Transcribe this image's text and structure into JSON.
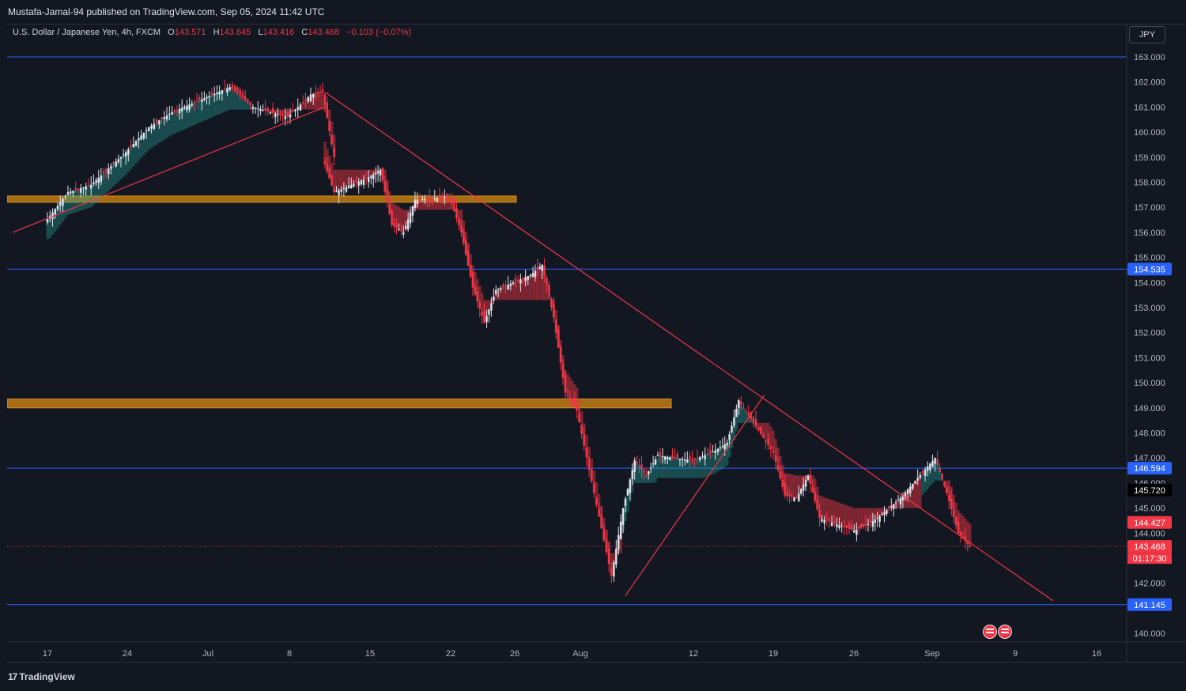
{
  "header": {
    "published": "Mustafa-Jamal-94 published on TradingView.com, Sep 05, 2024 11:42 UTC"
  },
  "legend": {
    "symbol": "U.S. Dollar / Japanese Yen, 4h, FXCM",
    "open_label": "O",
    "open": "143.571",
    "high_label": "H",
    "high": "143.645",
    "low_label": "L",
    "low": "143.416",
    "close_label": "C",
    "close": "143.468",
    "change": "−0.103 (−0.07%)"
  },
  "currency_button": "JPY",
  "footer": {
    "brand": "TradingView"
  },
  "colors": {
    "background": "#131722",
    "up": "#26a69a",
    "down": "#f23645",
    "hline": "#2962ff",
    "zone": "#f5a623",
    "trend": "#f23645"
  },
  "chart_data": {
    "type": "candlestick",
    "ylim": [
      139.6,
      164.0
    ],
    "y_ticks": [
      "163.000",
      "162.000",
      "161.000",
      "160.000",
      "159.000",
      "158.000",
      "157.000",
      "156.000",
      "155.000",
      "154.000",
      "153.000",
      "152.000",
      "151.000",
      "150.000",
      "149.000",
      "148.000",
      "147.000",
      "146.000",
      "145.000",
      "144.000",
      "142.000",
      "140.000"
    ],
    "x_ticks": [
      "17",
      "24",
      "Jul",
      "8",
      "15",
      "22",
      "26",
      "Aug",
      "12",
      "19",
      "26",
      "Sep",
      "9",
      "16"
    ],
    "price_path": [
      [
        "Jun 17",
        156.4
      ],
      [
        "Jun 19",
        157.6
      ],
      [
        "Jun 21",
        157.9
      ],
      [
        "Jun 24",
        159.2
      ],
      [
        "Jun 26",
        160.2
      ],
      [
        "Jun 28",
        160.8
      ],
      [
        "Jul 1",
        161.4
      ],
      [
        "Jul 3",
        161.8
      ],
      [
        "Jul 5",
        161.0
      ],
      [
        "Jul 8",
        160.6
      ],
      [
        "Jul 10",
        161.5
      ],
      [
        "Jul 11",
        161.6
      ],
      [
        "Jul 11",
        159.0
      ],
      [
        "Jul 12",
        157.6
      ],
      [
        "Jul 15",
        158.2
      ],
      [
        "Jul 16",
        158.5
      ],
      [
        "Jul 17",
        156.3
      ],
      [
        "Jul 18",
        156.0
      ],
      [
        "Jul 19",
        157.3
      ],
      [
        "Jul 22",
        157.4
      ],
      [
        "Jul 23",
        156.0
      ],
      [
        "Jul 24",
        153.8
      ],
      [
        "Jul 25",
        152.4
      ],
      [
        "Jul 26",
        153.7
      ],
      [
        "Jul 29",
        154.3
      ],
      [
        "Jul 30",
        154.7
      ],
      [
        "Jul 31",
        152.6
      ],
      [
        "Aug 1",
        149.6
      ],
      [
        "Aug 2",
        148.9
      ],
      [
        "Aug 5",
        142.3
      ],
      [
        "Aug 6",
        145.0
      ],
      [
        "Aug 7",
        146.9
      ],
      [
        "Aug 8",
        146.3
      ],
      [
        "Aug 9",
        147.1
      ],
      [
        "Aug 12",
        146.9
      ],
      [
        "Aug 14",
        147.3
      ],
      [
        "Aug 15",
        147.6
      ],
      [
        "Aug 16",
        149.3
      ],
      [
        "Aug 19",
        147.2
      ],
      [
        "Aug 20",
        145.5
      ],
      [
        "Aug 21",
        145.4
      ],
      [
        "Aug 22",
        146.3
      ],
      [
        "Aug 23",
        144.6
      ],
      [
        "Aug 26",
        144.1
      ],
      [
        "Aug 27",
        144.3
      ],
      [
        "Aug 28",
        144.6
      ],
      [
        "Aug 29",
        145.0
      ],
      [
        "Aug 30",
        145.4
      ],
      [
        "Sep 2",
        147.0
      ],
      [
        "Sep 3",
        145.6
      ],
      [
        "Sep 4",
        144.0
      ],
      [
        "Sep 5",
        143.468
      ]
    ],
    "horizontal_lines": [
      {
        "price": 163.0,
        "label": ""
      },
      {
        "price": 154.535,
        "label": "154.535"
      },
      {
        "price": 146.594,
        "label": "146.594"
      },
      {
        "price": 141.145,
        "label": "141.145"
      }
    ],
    "zones": [
      {
        "from": 157.2,
        "to": 157.45
      },
      {
        "from": 149.0,
        "to": 149.35
      }
    ],
    "price_tags": [
      {
        "price": 145.72,
        "label": "145.720",
        "style": "black"
      },
      {
        "price": 144.427,
        "label": "144.427",
        "style": "red"
      },
      {
        "price": 143.468,
        "label": "143.468",
        "sublabel": "01:17:30",
        "style": "red"
      }
    ],
    "trendlines": [
      {
        "from": [
          "Jun 14",
          156.0
        ],
        "to": [
          "Jul 11",
          161.0
        ]
      },
      {
        "from": [
          "Jul 11",
          161.6
        ],
        "to": [
          "Sep 12",
          141.3
        ]
      },
      {
        "from": [
          "Aug 6",
          141.5
        ],
        "to": [
          "Aug 18",
          149.5
        ]
      }
    ]
  }
}
